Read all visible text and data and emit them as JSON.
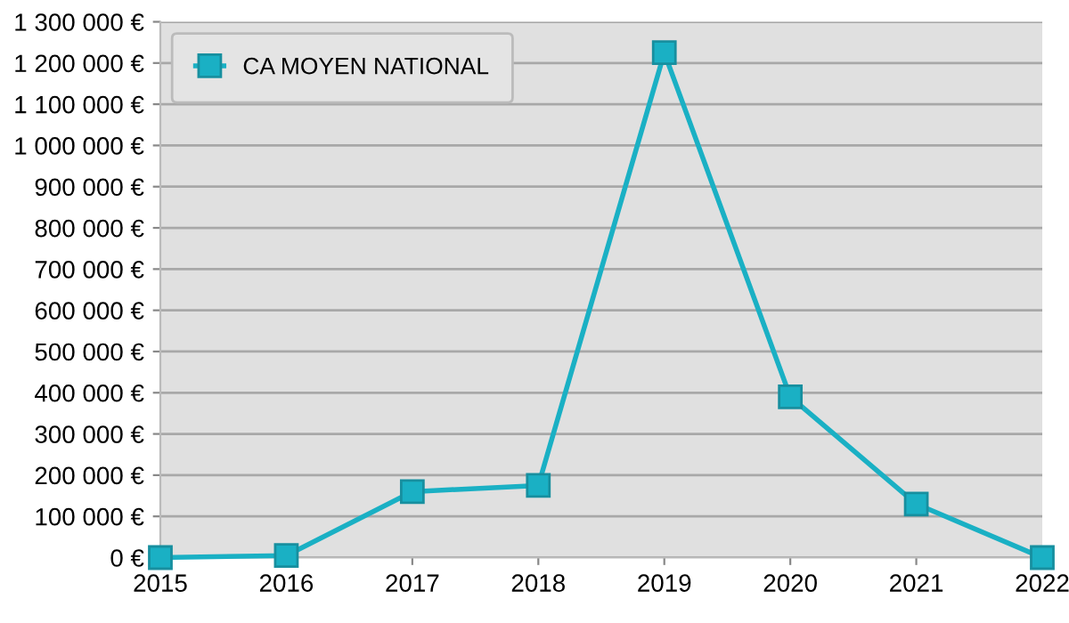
{
  "chart_data": {
    "type": "line",
    "x": [
      2015,
      2016,
      2017,
      2018,
      2019,
      2020,
      2021,
      2022
    ],
    "series": [
      {
        "name": "CA MOYEN NATIONAL",
        "color": "#1ab0c4",
        "values": [
          0,
          5000,
          160000,
          175000,
          1225000,
          390000,
          130000,
          0
        ]
      }
    ],
    "xlim": [
      2015,
      2022
    ],
    "xticks": [
      2015,
      2016,
      2017,
      2018,
      2019,
      2020,
      2021,
      2022
    ],
    "ylim": [
      0,
      1300000
    ],
    "yticks": [
      {
        "value": 0,
        "label": "0 €"
      },
      {
        "value": 100000,
        "label": "100 000 €"
      },
      {
        "value": 200000,
        "label": "200 000 €"
      },
      {
        "value": 300000,
        "label": "300 000 €"
      },
      {
        "value": 400000,
        "label": "400 000 €"
      },
      {
        "value": 500000,
        "label": "500 000 €"
      },
      {
        "value": 600000,
        "label": "600 000 €"
      },
      {
        "value": 700000,
        "label": "700 000 €"
      },
      {
        "value": 800000,
        "label": "800 000 €"
      },
      {
        "value": 900000,
        "label": "900 000 €"
      },
      {
        "value": 1000000,
        "label": "1 000 000 €"
      },
      {
        "value": 1100000,
        "label": "1 100 000 €"
      },
      {
        "value": 1200000,
        "label": "1 200 000 €"
      },
      {
        "value": 1300000,
        "label": "1 300 000 €"
      }
    ],
    "grid": "y",
    "legend": "top left",
    "marker": "square",
    "line_style": "solid"
  }
}
